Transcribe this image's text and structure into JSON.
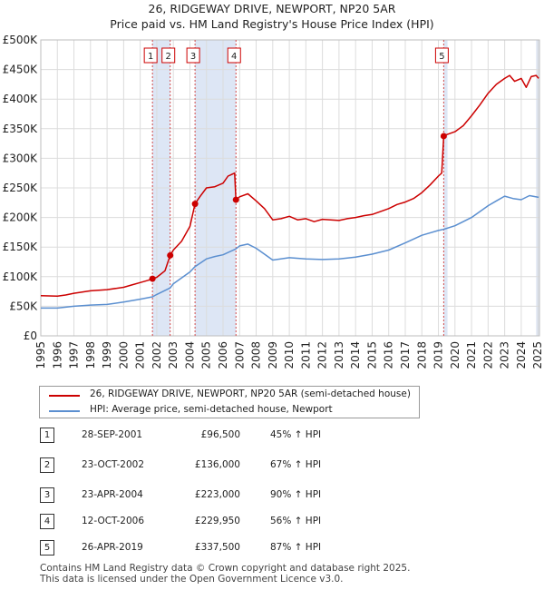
{
  "chart_data": {
    "type": "line",
    "title": "26, RIDGEWAY DRIVE, NEWPORT, NP20 5AR",
    "subtitle": "Price paid vs. HM Land Registry's House Price Index (HPI)",
    "xlim": [
      1995.0,
      2025.1
    ],
    "ylim": [
      0,
      500000
    ],
    "x_ticks": [
      "1995",
      "1996",
      "1997",
      "1998",
      "1999",
      "2000",
      "2001",
      "2002",
      "2003",
      "2004",
      "2005",
      "2006",
      "2007",
      "2008",
      "2009",
      "2010",
      "2011",
      "2012",
      "2013",
      "2014",
      "2015",
      "2016",
      "2017",
      "2018",
      "2019",
      "2020",
      "2021",
      "2022",
      "2023",
      "2024",
      "2025"
    ],
    "y_ticks": [
      {
        "value": 0,
        "label": "£0"
      },
      {
        "value": 50000,
        "label": "£50K"
      },
      {
        "value": 100000,
        "label": "£100K"
      },
      {
        "value": 150000,
        "label": "£150K"
      },
      {
        "value": 200000,
        "label": "£200K"
      },
      {
        "value": 250000,
        "label": "£250K"
      },
      {
        "value": 300000,
        "label": "£300K"
      },
      {
        "value": 350000,
        "label": "£350K"
      },
      {
        "value": 400000,
        "label": "£400K"
      },
      {
        "value": 450000,
        "label": "£450K"
      },
      {
        "value": 500000,
        "label": "£500K"
      }
    ],
    "grid": true,
    "series": [
      {
        "name": "26, RIDGEWAY DRIVE, NEWPORT, NP20 5AR (semi-detached house)",
        "color": "#cc0000",
        "points": [
          [
            1995.0,
            68000
          ],
          [
            1996.0,
            67000
          ],
          [
            1996.5,
            69000
          ],
          [
            1997.0,
            72000
          ],
          [
            1998.0,
            76000
          ],
          [
            1999.0,
            78000
          ],
          [
            2000.0,
            82000
          ],
          [
            2000.5,
            86000
          ],
          [
            2001.0,
            90000
          ],
          [
            2001.5,
            94000
          ],
          [
            2001.74,
            96500
          ],
          [
            2002.0,
            99000
          ],
          [
            2002.5,
            110000
          ],
          [
            2002.81,
            136000
          ],
          [
            2003.0,
            145000
          ],
          [
            2003.5,
            160000
          ],
          [
            2004.0,
            185000
          ],
          [
            2004.31,
            223000
          ],
          [
            2004.6,
            235000
          ],
          [
            2005.0,
            250000
          ],
          [
            2005.5,
            252000
          ],
          [
            2006.0,
            258000
          ],
          [
            2006.3,
            270000
          ],
          [
            2006.7,
            275000
          ],
          [
            2006.78,
            229950
          ],
          [
            2007.0,
            235000
          ],
          [
            2007.5,
            240000
          ],
          [
            2008.0,
            228000
          ],
          [
            2008.5,
            215000
          ],
          [
            2009.0,
            196000
          ],
          [
            2009.5,
            198000
          ],
          [
            2010.0,
            202000
          ],
          [
            2010.5,
            196000
          ],
          [
            2011.0,
            198000
          ],
          [
            2011.5,
            193000
          ],
          [
            2012.0,
            197000
          ],
          [
            2013.0,
            195000
          ],
          [
            2013.5,
            198000
          ],
          [
            2014.0,
            200000
          ],
          [
            2014.5,
            203000
          ],
          [
            2015.0,
            205000
          ],
          [
            2015.5,
            210000
          ],
          [
            2016.0,
            215000
          ],
          [
            2016.5,
            222000
          ],
          [
            2017.0,
            226000
          ],
          [
            2017.5,
            232000
          ],
          [
            2018.0,
            242000
          ],
          [
            2018.5,
            255000
          ],
          [
            2019.0,
            270000
          ],
          [
            2019.2,
            275000
          ],
          [
            2019.32,
            337500
          ],
          [
            2019.5,
            340000
          ],
          [
            2020.0,
            345000
          ],
          [
            2020.5,
            355000
          ],
          [
            2021.0,
            372000
          ],
          [
            2021.5,
            390000
          ],
          [
            2022.0,
            410000
          ],
          [
            2022.5,
            425000
          ],
          [
            2023.0,
            435000
          ],
          [
            2023.3,
            440000
          ],
          [
            2023.6,
            430000
          ],
          [
            2024.0,
            435000
          ],
          [
            2024.3,
            420000
          ],
          [
            2024.6,
            438000
          ],
          [
            2024.9,
            440000
          ],
          [
            2025.05,
            435000
          ]
        ]
      },
      {
        "name": "HPI: Average price, semi-detached house, Newport",
        "color": "#5b8fd0",
        "points": [
          [
            1995.0,
            47000
          ],
          [
            1996.0,
            47000
          ],
          [
            1997.0,
            50000
          ],
          [
            1998.0,
            52000
          ],
          [
            1999.0,
            53000
          ],
          [
            2000.0,
            57000
          ],
          [
            2001.0,
            62000
          ],
          [
            2001.74,
            66000
          ],
          [
            2002.0,
            70000
          ],
          [
            2002.81,
            81000
          ],
          [
            2003.0,
            88000
          ],
          [
            2004.0,
            108000
          ],
          [
            2004.31,
            117000
          ],
          [
            2005.0,
            130000
          ],
          [
            2005.5,
            134000
          ],
          [
            2006.0,
            137000
          ],
          [
            2006.78,
            147000
          ],
          [
            2007.0,
            152000
          ],
          [
            2007.5,
            155000
          ],
          [
            2008.0,
            148000
          ],
          [
            2008.5,
            138000
          ],
          [
            2009.0,
            128000
          ],
          [
            2010.0,
            132000
          ],
          [
            2011.0,
            130000
          ],
          [
            2012.0,
            129000
          ],
          [
            2013.0,
            130000
          ],
          [
            2014.0,
            133000
          ],
          [
            2015.0,
            138000
          ],
          [
            2016.0,
            145000
          ],
          [
            2017.0,
            157000
          ],
          [
            2018.0,
            170000
          ],
          [
            2019.0,
            178000
          ],
          [
            2019.32,
            180000
          ],
          [
            2020.0,
            186000
          ],
          [
            2021.0,
            200000
          ],
          [
            2022.0,
            220000
          ],
          [
            2022.5,
            228000
          ],
          [
            2023.0,
            236000
          ],
          [
            2023.5,
            232000
          ],
          [
            2024.0,
            230000
          ],
          [
            2024.5,
            237000
          ],
          [
            2025.05,
            234000
          ]
        ]
      }
    ],
    "sales": [
      {
        "num": "1",
        "x": 2001.74,
        "price": 96500,
        "date": "28-SEP-2001",
        "price_label": "£96,500",
        "hpi_label": "45% ↑ HPI"
      },
      {
        "num": "2",
        "x": 2002.81,
        "price": 136000,
        "date": "23-OCT-2002",
        "price_label": "£136,000",
        "hpi_label": "67% ↑ HPI"
      },
      {
        "num": "3",
        "x": 2004.31,
        "price": 223000,
        "date": "23-APR-2004",
        "price_label": "£223,000",
        "hpi_label": "90% ↑ HPI"
      },
      {
        "num": "4",
        "x": 2006.78,
        "price": 229950,
        "date": "12-OCT-2006",
        "price_label": "£229,950",
        "hpi_label": "56% ↑ HPI"
      },
      {
        "num": "5",
        "x": 2019.32,
        "price": 337500,
        "date": "26-APR-2019",
        "price_label": "£337,500",
        "hpi_label": "87% ↑ HPI"
      }
    ],
    "shaded_spans": [
      [
        2001.74,
        2002.81
      ],
      [
        2004.31,
        2006.78
      ],
      [
        2019.32,
        2019.55
      ],
      [
        2024.9,
        2025.1
      ]
    ]
  },
  "legend": {
    "property_label": "26, RIDGEWAY DRIVE, NEWPORT, NP20 5AR (semi-detached house)",
    "hpi_label": "HPI: Average price, semi-detached house, Newport",
    "property_color": "#cc0000",
    "hpi_color": "#5b8fd0"
  },
  "footer": {
    "line1": "Contains HM Land Registry data © Crown copyright and database right 2025.",
    "line2": "This data is licensed under the Open Government Licence v3.0."
  }
}
